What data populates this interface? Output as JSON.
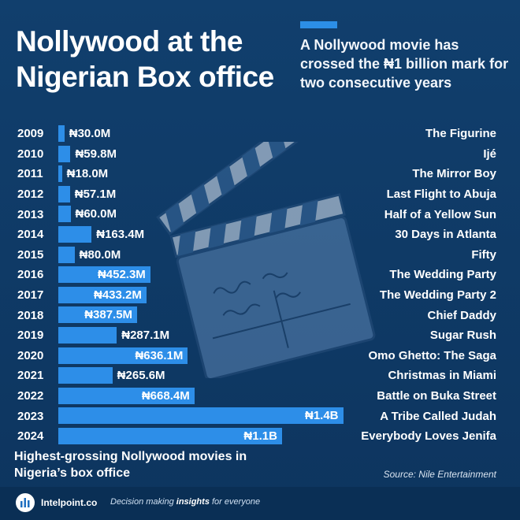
{
  "header": {
    "title": "Nollywood at the Nigerian Box office",
    "subtitle": "A Nollywood movie has crossed the ₦1 billion mark for two consecutive years"
  },
  "chart_data": {
    "type": "bar",
    "orientation": "horizontal",
    "categories": [
      "2009",
      "2010",
      "2011",
      "2012",
      "2013",
      "2014",
      "2015",
      "2016",
      "2017",
      "2018",
      "2019",
      "2020",
      "2021",
      "2022",
      "2023",
      "2024"
    ],
    "values": [
      30.0,
      59.8,
      18.0,
      57.1,
      60.0,
      163.4,
      80.0,
      452.3,
      433.2,
      387.5,
      287.1,
      636.1,
      265.6,
      668.4,
      1400,
      1100
    ],
    "value_labels": [
      "₦30.0M",
      "₦59.8M",
      "₦18.0M",
      "₦57.1M",
      "₦60.0M",
      "₦163.4M",
      "₦80.0M",
      "₦452.3M",
      "₦433.2M",
      "₦387.5M",
      "₦287.1M",
      "₦636.1M",
      "₦265.6M",
      "₦668.4M",
      "₦1.4B",
      "₦1.1B"
    ],
    "movies": [
      "The Figurine",
      "Ijé",
      "The Mirror Boy",
      "Last Flight to Abuja",
      "Half of a Yellow Sun",
      "30 Days in Atlanta",
      "Fifty",
      "The Wedding Party",
      "The Wedding Party 2",
      "Chief Daddy",
      "Sugar Rush",
      "Omo Ghetto: The Saga",
      "Christmas in Miami",
      "Battle on Buka Street",
      "A Tribe Called Judah",
      "Everybody Loves Jenifa"
    ],
    "bar_color": "#2d8ee8"
  },
  "caption": "Highest-grossing Nollywood movies in Nigeria’s box office",
  "source": "Source: Nile Entertainment",
  "footer": {
    "brand": "Intelpoint.co",
    "tagline_pre": "Decision making ",
    "tagline_em": "insights",
    "tagline_post": " for everyone"
  }
}
